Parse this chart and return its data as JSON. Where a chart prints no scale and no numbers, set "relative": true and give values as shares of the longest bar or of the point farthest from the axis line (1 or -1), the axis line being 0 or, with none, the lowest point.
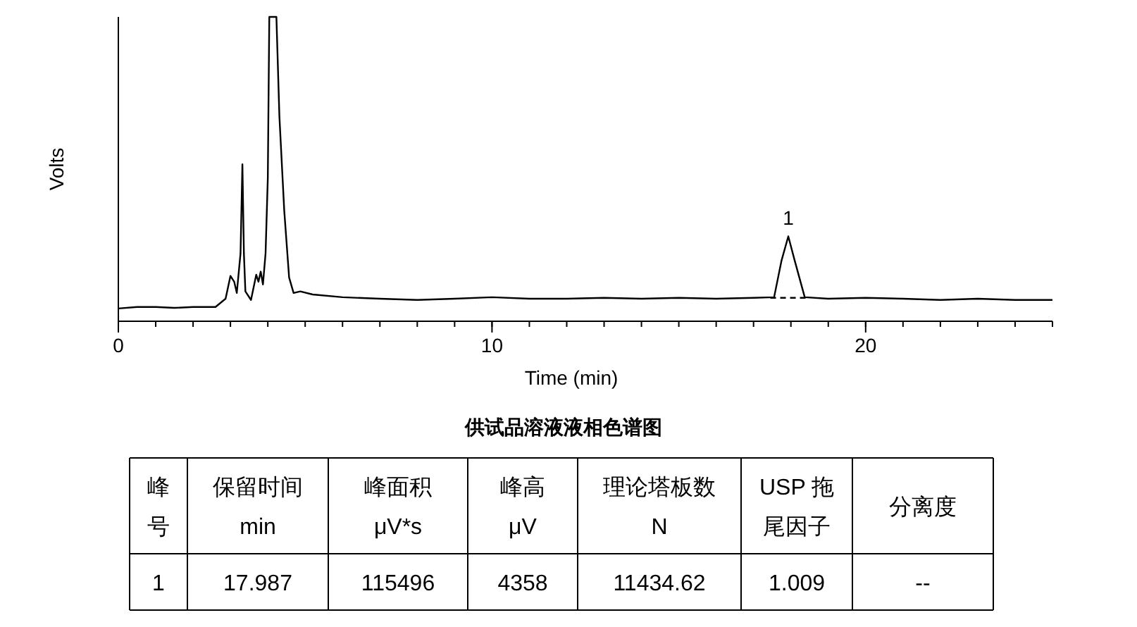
{
  "chart_data": [
    {
      "type": "line",
      "relative": true,
      "xlabel": "Time (min)",
      "ylabel": "Volts",
      "xlim": [
        0,
        25
      ],
      "xticks": [
        0,
        10,
        20
      ],
      "grid": false,
      "series": [
        {
          "color": "#000000",
          "line_style": "solid",
          "x": [
            0,
            0.5,
            1.0,
            1.5,
            2.0,
            2.3,
            2.6,
            2.87,
            3.0,
            3.1,
            3.17,
            3.27,
            3.32,
            3.36,
            3.4,
            3.55,
            3.69,
            3.75,
            3.81,
            3.87,
            3.94,
            4.0,
            4.04,
            4.23,
            4.31,
            4.44,
            4.57,
            4.69,
            4.87,
            5.2,
            6.0,
            7.0,
            8.0,
            9.0,
            10.0,
            11.0,
            12.0,
            13.0,
            14.0,
            15.0,
            16.0,
            17.0,
            17.55,
            17.75,
            17.93,
            18.1,
            18.37,
            19.0,
            20.0,
            21.0,
            22.0,
            23.0,
            24.0,
            25.0
          ],
          "values": [
            0.042,
            0.047,
            0.047,
            0.044,
            0.047,
            0.047,
            0.047,
            0.074,
            0.149,
            0.13,
            0.093,
            0.223,
            0.516,
            0.223,
            0.098,
            0.07,
            0.153,
            0.13,
            0.163,
            0.121,
            0.223,
            0.47,
            1.0,
            1.0,
            0.674,
            0.363,
            0.144,
            0.093,
            0.098,
            0.088,
            0.079,
            0.074,
            0.07,
            0.074,
            0.079,
            0.074,
            0.074,
            0.077,
            0.074,
            0.077,
            0.074,
            0.077,
            0.079,
            0.2,
            0.279,
            0.2,
            0.079,
            0.074,
            0.077,
            0.074,
            0.07,
            0.074,
            0.07,
            0.07
          ]
        },
        {
          "color": "#000000",
          "line_style": "dashed",
          "x": [
            17.45,
            18.45
          ],
          "values": [
            0.077,
            0.077
          ]
        }
      ],
      "annotations": [
        {
          "text": "1",
          "x": 17.93,
          "y": 0.279
        }
      ]
    },
    {
      "type": "other",
      "title": "供试品溶液液相色谱图",
      "categories": [
        [
          "峰",
          "号"
        ],
        [
          "保留时间",
          "min"
        ],
        [
          "峰面积",
          "μV*s"
        ],
        [
          "峰高",
          "μV"
        ],
        [
          "理论塔板数",
          "N"
        ],
        [
          "USP 拖",
          "尾因子"
        ],
        [
          "分离度"
        ]
      ],
      "annotations": [
        "1",
        "17.987",
        "115496",
        "4358",
        "11434.62",
        "1.009",
        "--"
      ]
    }
  ]
}
